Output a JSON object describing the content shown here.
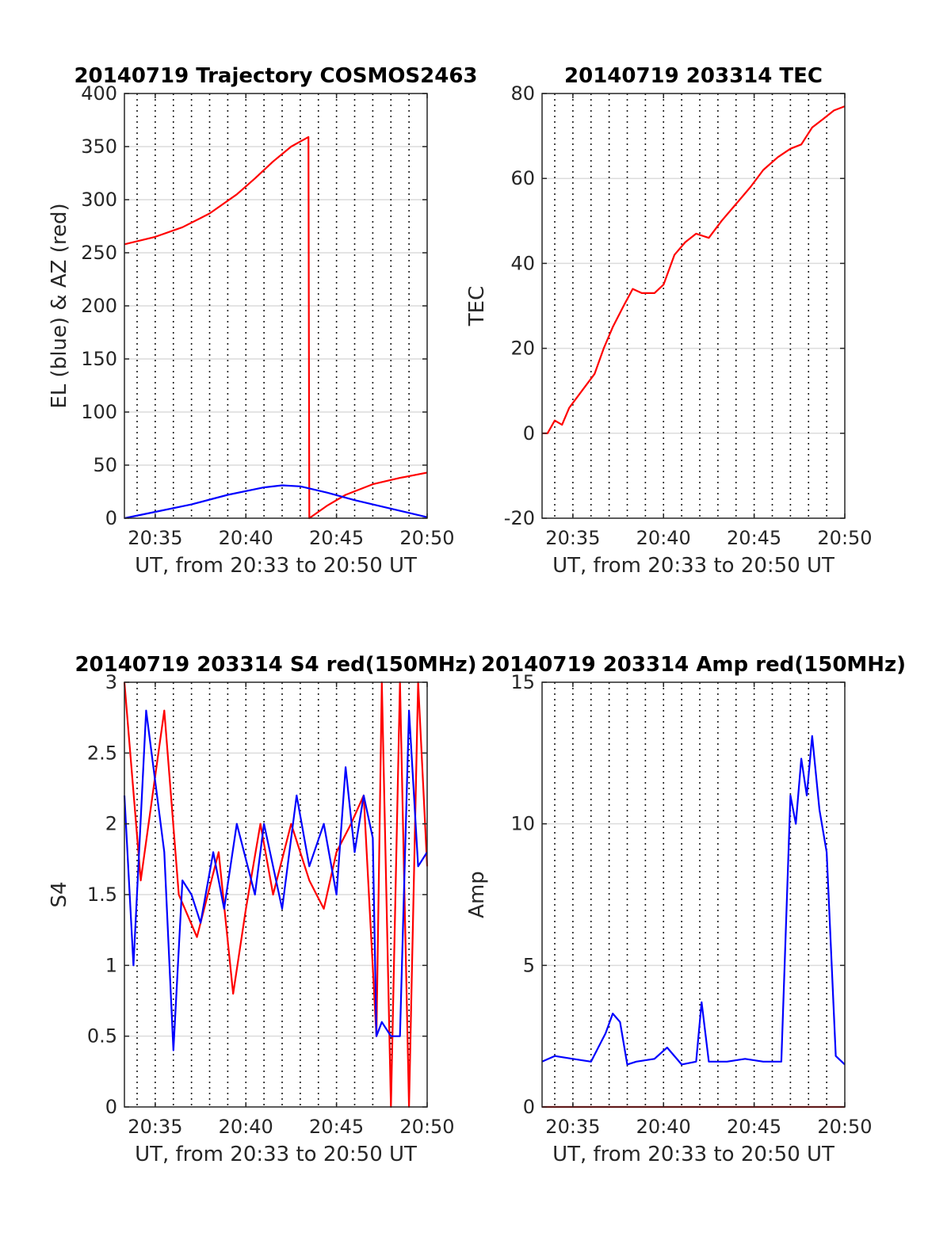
{
  "chart_data": [
    {
      "type": "line",
      "title": "20140719 Trajectory COSMOS2463",
      "xlabel": "UT, from 20:33 to 20:50 UT",
      "ylabel": "EL (blue) & AZ (red)",
      "x_unit": "minutes after 20:00 UT",
      "xlim": [
        33.3,
        50
      ],
      "ylim": [
        0,
        400
      ],
      "x_ticks": [
        35,
        40,
        45,
        50
      ],
      "x_tick_labels": [
        "20:35",
        "20:40",
        "20:45",
        "20:50"
      ],
      "y_ticks": [
        0,
        50,
        100,
        150,
        200,
        250,
        300,
        350,
        400
      ],
      "y_tick_labels": [
        "0",
        "50",
        "100",
        "150",
        "200",
        "250",
        "300",
        "350",
        "400"
      ],
      "grid": true,
      "series": [
        {
          "name": "AZ",
          "color": "#ff0000",
          "x": [
            33.3,
            35,
            36.5,
            38,
            39.5,
            40.5,
            41.5,
            42.5,
            43.45,
            43.5,
            44.5,
            45.5,
            47,
            48.5,
            50
          ],
          "y": [
            258,
            265,
            274,
            287,
            305,
            320,
            336,
            350,
            359,
            0,
            12,
            22,
            32,
            38,
            43
          ]
        },
        {
          "name": "EL",
          "color": "#0000ff",
          "x": [
            33.3,
            35,
            37,
            39,
            41,
            42,
            43,
            44.5,
            46,
            48,
            50
          ],
          "y": [
            0,
            6,
            13,
            22,
            29,
            31,
            30,
            24,
            17,
            9,
            1
          ]
        }
      ]
    },
    {
      "type": "line",
      "title": "20140719 203314 TEC",
      "xlabel": "UT, from 20:33 to 20:50 UT",
      "ylabel": "TEC",
      "x_unit": "minutes after 20:00 UT",
      "xlim": [
        33.3,
        50
      ],
      "ylim": [
        -20,
        80
      ],
      "x_ticks": [
        35,
        40,
        45,
        50
      ],
      "x_tick_labels": [
        "20:35",
        "20:40",
        "20:45",
        "20:50"
      ],
      "y_ticks": [
        -20,
        0,
        20,
        40,
        60,
        80
      ],
      "y_tick_labels": [
        "-20",
        "0",
        "20",
        "40",
        "60",
        "80"
      ],
      "grid": true,
      "series": [
        {
          "name": "TEC",
          "color": "#ff0000",
          "x": [
            33.3,
            33.6,
            34,
            34.4,
            34.8,
            35.5,
            36.2,
            36.7,
            37.2,
            37.8,
            38.3,
            38.8,
            39.5,
            40,
            40.6,
            41.2,
            41.8,
            42.5,
            43.2,
            44,
            44.8,
            45.5,
            46.3,
            47,
            47.6,
            48.2,
            48.8,
            49.4,
            50
          ],
          "y": [
            0,
            0,
            3,
            2,
            6,
            10,
            14,
            20,
            25,
            30,
            34,
            33,
            33,
            35,
            42,
            45,
            47,
            46,
            50,
            54,
            58,
            62,
            65,
            67,
            68,
            72,
            74,
            76,
            77
          ]
        }
      ]
    },
    {
      "type": "line",
      "title": "20140719 203314 S4 red(150MHz)",
      "xlabel": "UT, from 20:33 to 20:50 UT",
      "ylabel": "S4",
      "x_unit": "minutes after 20:00 UT",
      "xlim": [
        33.3,
        50
      ],
      "ylim": [
        0,
        3
      ],
      "x_ticks": [
        35,
        40,
        45,
        50
      ],
      "x_tick_labels": [
        "20:35",
        "20:40",
        "20:45",
        "20:50"
      ],
      "y_ticks": [
        0,
        0.5,
        1,
        1.5,
        2,
        2.5,
        3
      ],
      "y_tick_labels": [
        "0",
        "0.5",
        "1",
        "1.5",
        "2",
        "2.5",
        "3"
      ],
      "grid": true,
      "series": [
        {
          "name": "red",
          "color": "#ff0000",
          "x": [
            33.3,
            34.2,
            35.5,
            36.3,
            37.3,
            38.5,
            39.3,
            40,
            40.8,
            41.5,
            42.5,
            43.5,
            44.3,
            45,
            45.8,
            46.5,
            47.2,
            47.5,
            48,
            48.5,
            49,
            49.5,
            50
          ],
          "y": [
            3,
            1.6,
            2.8,
            1.5,
            1.2,
            1.8,
            0.8,
            1.4,
            2.0,
            1.5,
            2.0,
            1.6,
            1.4,
            1.8,
            2.0,
            2.2,
            0.5,
            3,
            0,
            3,
            0,
            3,
            1.7
          ]
        },
        {
          "name": "blue",
          "color": "#0000ff",
          "x": [
            33.3,
            33.8,
            34.5,
            35.5,
            36,
            36.5,
            37,
            37.5,
            38.2,
            38.8,
            39.5,
            40.5,
            41,
            42,
            42.8,
            43.5,
            44.3,
            45,
            45.5,
            46,
            46.5,
            47,
            47.2,
            47.5,
            48,
            48.5,
            49,
            49.5,
            50
          ],
          "y": [
            2.2,
            1.0,
            2.8,
            1.8,
            0.4,
            1.6,
            1.5,
            1.3,
            1.8,
            1.4,
            2.0,
            1.5,
            2.0,
            1.4,
            2.2,
            1.7,
            2.0,
            1.5,
            2.4,
            1.8,
            2.2,
            1.9,
            0.5,
            0.6,
            0.5,
            0.5,
            2.8,
            1.7,
            1.8
          ]
        }
      ]
    },
    {
      "type": "line",
      "title": "20140719 203314 Amp red(150MHz)",
      "xlabel": "UT, from 20:33 to 20:50 UT",
      "ylabel": "Amp",
      "x_unit": "minutes after 20:00 UT",
      "xlim": [
        33.3,
        50
      ],
      "ylim": [
        0,
        15
      ],
      "x_ticks": [
        35,
        40,
        45,
        50
      ],
      "x_tick_labels": [
        "20:35",
        "20:40",
        "20:45",
        "20:50"
      ],
      "y_ticks": [
        0,
        5,
        10,
        15
      ],
      "y_tick_labels": [
        "0",
        "5",
        "10",
        "15"
      ],
      "grid": true,
      "series": [
        {
          "name": "red",
          "color": "#ff0000",
          "x": [
            33.3,
            50
          ],
          "y": [
            0,
            0
          ]
        },
        {
          "name": "blue",
          "color": "#0000ff",
          "x": [
            33.3,
            34,
            35,
            36,
            36.8,
            37.2,
            37.6,
            38,
            38.5,
            39.5,
            40.2,
            41,
            41.8,
            42.1,
            42.5,
            43.5,
            44.5,
            45.5,
            46.5,
            47,
            47.3,
            47.6,
            47.9,
            48.2,
            48.6,
            49,
            49.5,
            50
          ],
          "y": [
            1.6,
            1.8,
            1.7,
            1.6,
            2.6,
            3.3,
            3.0,
            1.5,
            1.6,
            1.7,
            2.1,
            1.5,
            1.6,
            3.7,
            1.6,
            1.6,
            1.7,
            1.6,
            1.6,
            11.0,
            10.0,
            12.3,
            11.0,
            13.1,
            10.5,
            9.0,
            1.8,
            1.5
          ]
        }
      ]
    }
  ]
}
